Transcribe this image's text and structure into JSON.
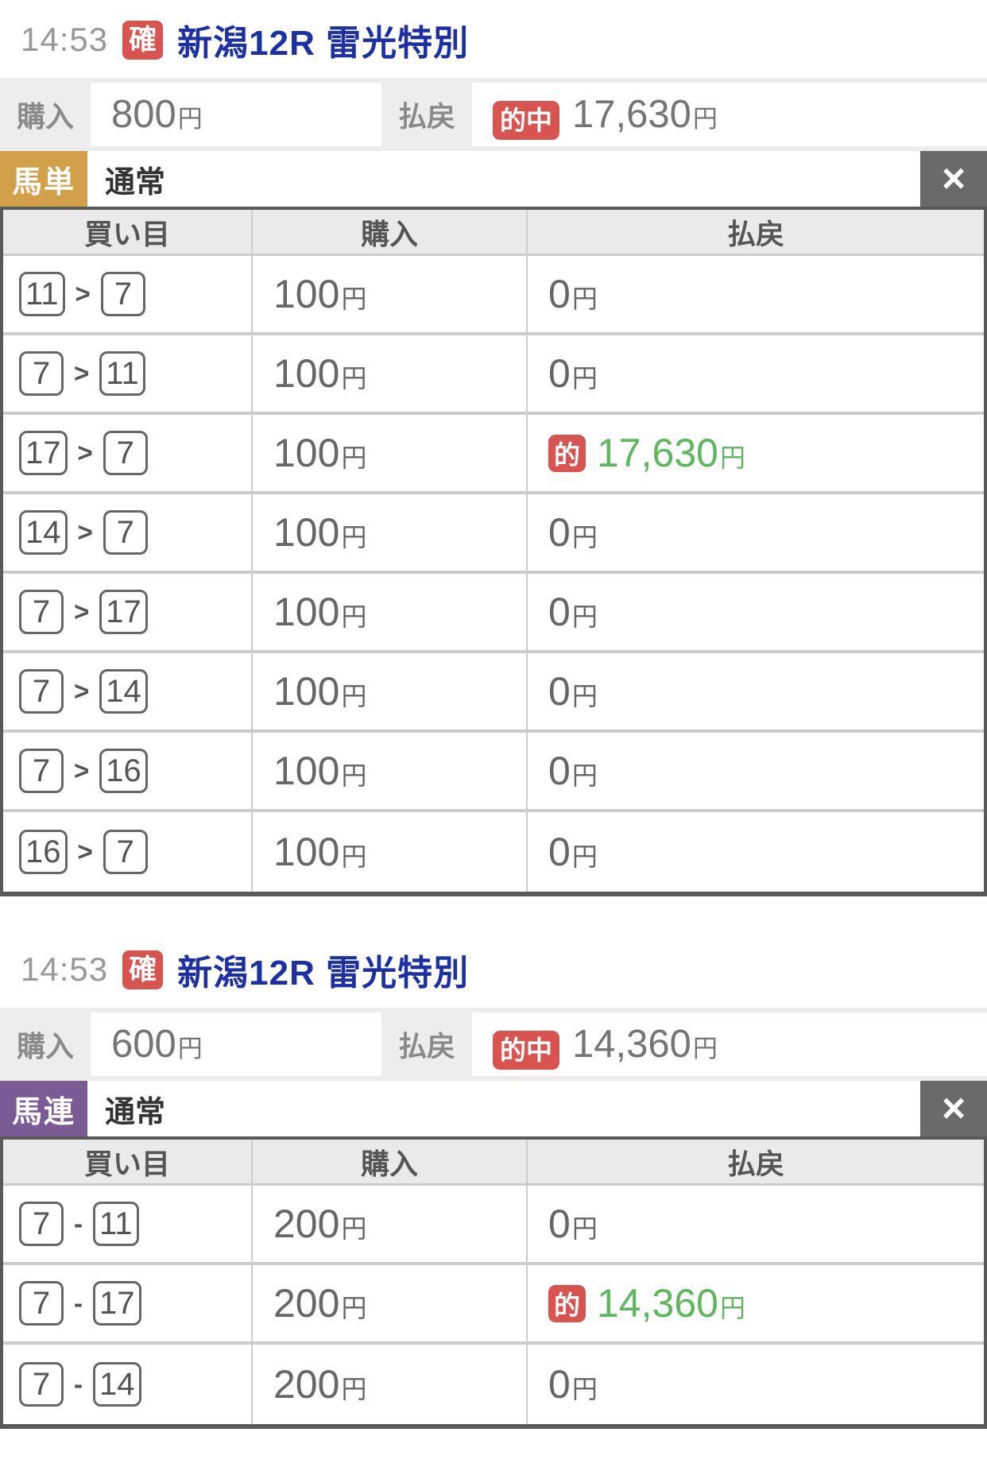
{
  "labels": {
    "yen": "円"
  },
  "colors": {
    "title_blue": "#1b2fa8",
    "badge_red": "#d9534f",
    "win_green": "#5cb85c",
    "exacta_gold": "#d3a04a",
    "quinella_purple": "#7b5b96"
  },
  "sections": [
    {
      "time": "14:53",
      "confirm_badge": "確",
      "race_title": "新潟12R 雷光特別",
      "purchase_label": "購入",
      "purchase_amount": "800",
      "payout_label": "払戻",
      "hit_badge": "的中",
      "payout_amount": "17,630",
      "bet_type": "馬単",
      "bet_type_color": "#d3a04a",
      "bet_method": "通常",
      "close_glyph": "×",
      "selection_separator": ">",
      "win_badge": "的",
      "table": {
        "headers": [
          "買い目",
          "購入",
          "払戻"
        ],
        "rows": [
          {
            "first": "11",
            "second": "7",
            "purchase": "100",
            "payout": "0",
            "win": false
          },
          {
            "first": "7",
            "second": "11",
            "purchase": "100",
            "payout": "0",
            "win": false
          },
          {
            "first": "17",
            "second": "7",
            "purchase": "100",
            "payout": "17,630",
            "win": true
          },
          {
            "first": "14",
            "second": "7",
            "purchase": "100",
            "payout": "0",
            "win": false
          },
          {
            "first": "7",
            "second": "17",
            "purchase": "100",
            "payout": "0",
            "win": false
          },
          {
            "first": "7",
            "second": "14",
            "purchase": "100",
            "payout": "0",
            "win": false
          },
          {
            "first": "7",
            "second": "16",
            "purchase": "100",
            "payout": "0",
            "win": false
          },
          {
            "first": "16",
            "second": "7",
            "purchase": "100",
            "payout": "0",
            "win": false
          }
        ]
      }
    },
    {
      "time": "14:53",
      "confirm_badge": "確",
      "race_title": "新潟12R 雷光特別",
      "purchase_label": "購入",
      "purchase_amount": "600",
      "payout_label": "払戻",
      "hit_badge": "的中",
      "payout_amount": "14,360",
      "bet_type": "馬連",
      "bet_type_color": "#7b5b96",
      "bet_method": "通常",
      "close_glyph": "×",
      "selection_separator": "-",
      "win_badge": "的",
      "table": {
        "headers": [
          "買い目",
          "購入",
          "払戻"
        ],
        "rows": [
          {
            "first": "7",
            "second": "11",
            "purchase": "200",
            "payout": "0",
            "win": false
          },
          {
            "first": "7",
            "second": "17",
            "purchase": "200",
            "payout": "14,360",
            "win": true
          },
          {
            "first": "7",
            "second": "14",
            "purchase": "200",
            "payout": "0",
            "win": false
          }
        ]
      }
    }
  ]
}
